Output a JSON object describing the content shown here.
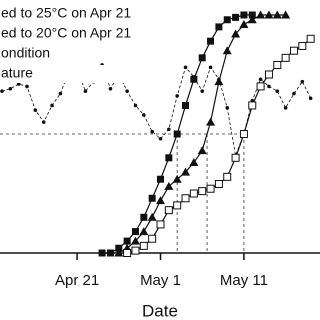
{
  "chart_data": {
    "type": "line",
    "x_label": "Date",
    "xlim": [
      "Apr 12",
      "May 20"
    ],
    "xticks": [
      "Apr 21",
      "May 1",
      "May 11"
    ],
    "ylim": [
      0,
      100
    ],
    "threshold": {
      "name": "ondition",
      "value": 50
    },
    "series": [
      {
        "name": "ed to 25°C on Apr 21",
        "color": "#111111",
        "marker": "square",
        "x": [
          "Apr 24",
          "Apr 25",
          "Apr 26",
          "Apr 27",
          "Apr 28",
          "Apr 29",
          "Apr 30",
          "May 1",
          "May 2",
          "May 3",
          "May 4",
          "May 5",
          "May 6",
          "May 7",
          "May 8",
          "May 9",
          "May 10",
          "May 11",
          "May 12"
        ],
        "values": [
          0,
          0,
          2,
          5,
          9,
          15,
          23,
          31,
          40,
          50,
          62,
          73,
          82,
          89,
          95,
          98,
          99,
          100,
          100
        ]
      },
      {
        "name": "ed to 20°C on Apr 21",
        "color": "#111111",
        "marker": "triangle",
        "x": [
          "Apr 26",
          "Apr 27",
          "Apr 28",
          "Apr 29",
          "Apr 30",
          "May 1",
          "May 2",
          "May 3",
          "May 4",
          "May 5",
          "May 6",
          "May 7",
          "May 8",
          "May 9",
          "May 10",
          "May 11",
          "May 12",
          "May 13",
          "May 14",
          "May 15",
          "May 16"
        ],
        "values": [
          0,
          2,
          5,
          9,
          15,
          22,
          28,
          31,
          34,
          38,
          43,
          55,
          72,
          85,
          92,
          96,
          98,
          100,
          100,
          100,
          100
        ]
      },
      {
        "name": "ature",
        "color": "#111111",
        "marker": "dot",
        "dashed": true,
        "x": [
          "Apr 12",
          "Apr 13",
          "Apr 14",
          "Apr 15",
          "Apr 16",
          "Apr 17",
          "Apr 18",
          "Apr 19",
          "Apr 20",
          "Apr 21",
          "Apr 22",
          "Apr 23",
          "Apr 24",
          "Apr 25",
          "Apr 26",
          "Apr 27",
          "Apr 28",
          "Apr 29",
          "Apr 30",
          "May 1",
          "May 2",
          "May 3",
          "May 4",
          "May 5",
          "May 6",
          "May 7",
          "May 8",
          "May 9",
          "May 10",
          "May 11",
          "May 12",
          "May 13",
          "May 14",
          "May 15",
          "May 16",
          "May 17",
          "May 18",
          "May 19"
        ],
        "values": [
          68,
          69,
          71,
          70,
          60,
          55,
          62,
          67,
          76,
          77,
          68,
          72,
          79,
          69,
          75,
          68,
          62,
          58,
          51,
          48,
          52,
          66,
          78,
          74,
          68,
          78,
          73,
          61,
          41,
          50,
          64,
          73,
          70,
          68,
          61,
          67,
          72,
          65
        ]
      },
      {
        "name": null,
        "color": "#111111",
        "marker": "open-square",
        "x": [
          "Apr 27",
          "Apr 28",
          "Apr 29",
          "Apr 30",
          "May 1",
          "May 2",
          "May 3",
          "May 4",
          "May 5",
          "May 6",
          "May 7",
          "May 8",
          "May 9",
          "May 10",
          "May 11",
          "May 12",
          "May 13",
          "May 14",
          "May 15",
          "May 16",
          "May 17",
          "May 18",
          "May 19"
        ],
        "values": [
          0,
          1,
          3,
          6,
          12,
          18,
          20,
          23,
          25,
          26,
          27,
          29,
          32,
          40,
          50,
          62,
          70,
          75,
          79,
          82,
          85,
          87,
          90
        ]
      }
    ]
  }
}
